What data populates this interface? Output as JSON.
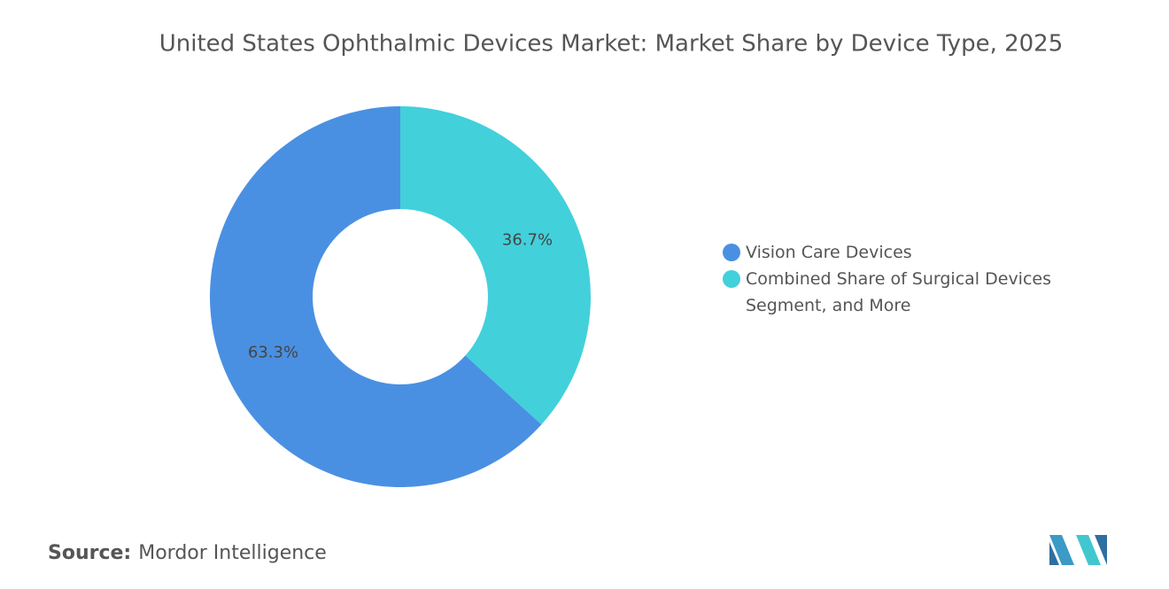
{
  "chart_data": {
    "type": "donut",
    "title": "United States Ophthalmic Devices Market: Market Share by Device Type, 2025",
    "categories": [
      "Vision Care Devices",
      "Combined Share of Surgical Devices Segment, and More"
    ],
    "values": [
      63.3,
      36.7
    ],
    "value_labels": [
      "63.3%",
      "36.7%"
    ],
    "colors": [
      "#4a90e2",
      "#42d0db"
    ],
    "legend": "right"
  },
  "source": {
    "label": "Source:",
    "text": "Mordor Intelligence"
  }
}
